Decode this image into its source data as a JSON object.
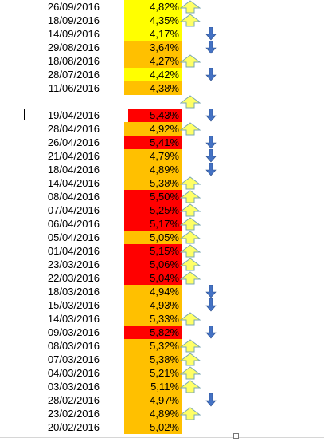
{
  "colors": {
    "yellow": "#ffff00",
    "orange": "#ffc000",
    "red": "#ff0000",
    "up_arrow_fill": "#ffff66",
    "up_arrow_stroke": "#7aa7b2",
    "down_arrow_fill": "#4472c4"
  },
  "icons": {
    "up": "up-arrow-icon",
    "down": "down-arrow-icon"
  },
  "rows": [
    {
      "date": "26/09/2016",
      "value": "4,82%",
      "fill": "yellow",
      "arrow": "up"
    },
    {
      "date": "18/09/2016",
      "value": "4,35%",
      "fill": "yellow",
      "arrow": "up"
    },
    {
      "date": "14/09/2016",
      "value": "4,17%",
      "fill": "yellow",
      "arrow": "down"
    },
    {
      "date": "29/08/2016",
      "value": "3,64%",
      "fill": "orange",
      "arrow": "down"
    },
    {
      "date": "18/08/2016",
      "value": "4,27%",
      "fill": "orange",
      "arrow": "up"
    },
    {
      "date": "28/07/2016",
      "value": "4,42%",
      "fill": "yellow",
      "arrow": "down"
    },
    {
      "date": "11/06/2016",
      "value": "4,38%",
      "fill": "orange",
      "arrow": ""
    },
    {
      "date": "",
      "value": "",
      "fill": "",
      "arrow": "up"
    },
    {
      "date": "19/04/2016",
      "value": "5,43%",
      "fill": "red",
      "arrow": "down"
    },
    {
      "date": "28/04/2016",
      "value": "4,92%",
      "fill": "orange",
      "arrow": "up"
    },
    {
      "date": "26/04/2016",
      "value": "5,41%",
      "fill": "red",
      "arrow": "down"
    },
    {
      "date": "21/04/2016",
      "value": "4,79%",
      "fill": "orange",
      "arrow": "down"
    },
    {
      "date": "18/04/2016",
      "value": "4,89%",
      "fill": "orange",
      "arrow": "down"
    },
    {
      "date": "14/04/2016",
      "value": "5,38%",
      "fill": "orange",
      "arrow": "up"
    },
    {
      "date": "08/04/2016",
      "value": "5,50%",
      "fill": "red",
      "arrow": "up"
    },
    {
      "date": "07/04/2016",
      "value": "5,25%",
      "fill": "red",
      "arrow": "up"
    },
    {
      "date": "06/04/2016",
      "value": "5,17%",
      "fill": "red",
      "arrow": "up"
    },
    {
      "date": "05/04/2016",
      "value": "5,05%",
      "fill": "orange",
      "arrow": "up"
    },
    {
      "date": "01/04/2016",
      "value": "5,15%",
      "fill": "red",
      "arrow": "up"
    },
    {
      "date": "23/03/2016",
      "value": "5,06%",
      "fill": "red",
      "arrow": "up"
    },
    {
      "date": "22/03/2016",
      "value": "5,04%",
      "fill": "red",
      "arrow": "up"
    },
    {
      "date": "18/03/2016",
      "value": "4,94%",
      "fill": "orange",
      "arrow": "down"
    },
    {
      "date": "15/03/2016",
      "value": "4,93%",
      "fill": "orange",
      "arrow": "down"
    },
    {
      "date": "14/03/2016",
      "value": "5,33%",
      "fill": "orange",
      "arrow": "up"
    },
    {
      "date": "09/03/2016",
      "value": "5,82%",
      "fill": "red",
      "arrow": "down"
    },
    {
      "date": "08/03/2016",
      "value": "5,32%",
      "fill": "orange",
      "arrow": "up"
    },
    {
      "date": "07/03/2016",
      "value": "5,38%",
      "fill": "orange",
      "arrow": "up"
    },
    {
      "date": "04/03/2016",
      "value": "5,21%",
      "fill": "orange",
      "arrow": "up"
    },
    {
      "date": "03/03/2016",
      "value": "5,11%",
      "fill": "orange",
      "arrow": "up"
    },
    {
      "date": "28/02/2016",
      "value": "4,97%",
      "fill": "orange",
      "arrow": "down"
    },
    {
      "date": "23/02/2016",
      "value": "4,89%",
      "fill": "orange",
      "arrow": "up"
    },
    {
      "date": "20/02/2016",
      "value": "5,02%",
      "fill": "orange",
      "arrow": ""
    }
  ]
}
